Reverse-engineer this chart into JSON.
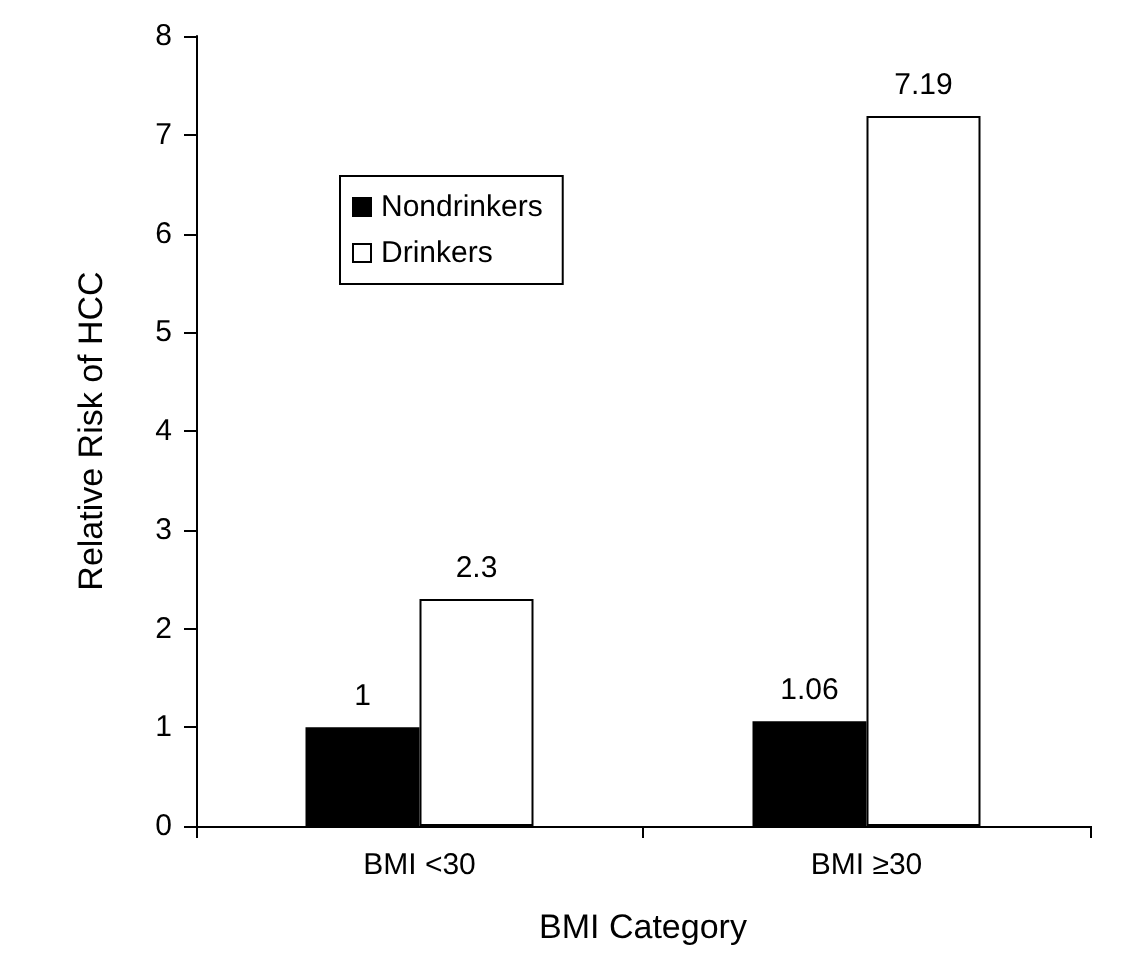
{
  "chart_data": {
    "type": "bar",
    "xlabel": "BMI Category",
    "ylabel": "Relative Risk of HCC",
    "categories": [
      "BMI <30",
      "BMI ≥30"
    ],
    "series": [
      {
        "name": "Nondrinkers",
        "color": "#000000",
        "values": [
          1,
          1.06
        ]
      },
      {
        "name": "Drinkers",
        "color": "#ffffff",
        "values": [
          2.3,
          7.19
        ]
      }
    ],
    "ylim": [
      0,
      8
    ],
    "yticks": [
      0,
      1,
      2,
      3,
      4,
      5,
      6,
      7,
      8
    ],
    "grid": false,
    "legend": "top left",
    "data_labels": true
  }
}
